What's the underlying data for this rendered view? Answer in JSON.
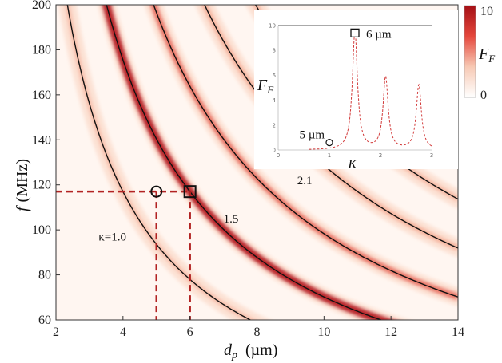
{
  "chart_data": [
    {
      "type": "heatmap",
      "xlabel": "d",
      "xlabel_sub": "p",
      "xlabel_unit": "(µm)",
      "ylabel": "f",
      "ylabel_unit": "(MHz)",
      "xlim": [
        2,
        14
      ],
      "ylim": [
        60,
        200
      ],
      "xticks": [
        2,
        4,
        6,
        8,
        10,
        12,
        14
      ],
      "yticks": [
        60,
        80,
        100,
        120,
        140,
        160,
        180,
        200
      ],
      "colorbar": {
        "label": "F",
        "label_sub": "F",
        "min": 0,
        "max": 10,
        "ticks": [
          0,
          10
        ],
        "colors": [
          "#ffffff",
          "#f7c9b4",
          "#e5473c",
          "#a50f15"
        ]
      },
      "curve_label": "κ",
      "resonance_curves": [
        {
          "kappa": 1.0,
          "label": "κ=1.0",
          "intensity": 0.15
        },
        {
          "kappa": 1.5,
          "label": "1.5",
          "intensity": 0.95
        },
        {
          "kappa": 2.1,
          "label": "2.1",
          "intensity": 0.55
        },
        {
          "kappa": 2.75,
          "label": "",
          "intensity": 0.35
        },
        {
          "kappa": 3.4,
          "label": "",
          "intensity": 0.25
        }
      ],
      "markers": [
        {
          "shape": "circle",
          "x": 5,
          "y": 117,
          "label": "5 µm"
        },
        {
          "shape": "square",
          "x": 6,
          "y": 117,
          "label": "6 µm"
        }
      ],
      "reference_lines": {
        "color": "#b22222",
        "y": 117,
        "x": [
          5,
          6
        ]
      }
    },
    {
      "type": "line",
      "inset": true,
      "xlabel": "κ",
      "ylabel": "F",
      "ylabel_sub": "F",
      "xlim": [
        0,
        3
      ],
      "ylim": [
        0,
        10
      ],
      "xticks": [
        0,
        1,
        2,
        3
      ],
      "yticks": [
        0,
        2,
        4,
        6,
        8,
        10
      ],
      "peaks": [
        {
          "kappa": 1.5,
          "height": 9.5
        },
        {
          "kappa": 2.1,
          "height": 5.8
        },
        {
          "kappa": 2.75,
          "height": 5.2
        }
      ],
      "markers": [
        {
          "shape": "circle",
          "kappa": 1.0,
          "value": 0.6,
          "label": "5 µm"
        },
        {
          "shape": "square",
          "kappa": 1.5,
          "value": 9.4,
          "label": "6 µm"
        }
      ]
    }
  ]
}
